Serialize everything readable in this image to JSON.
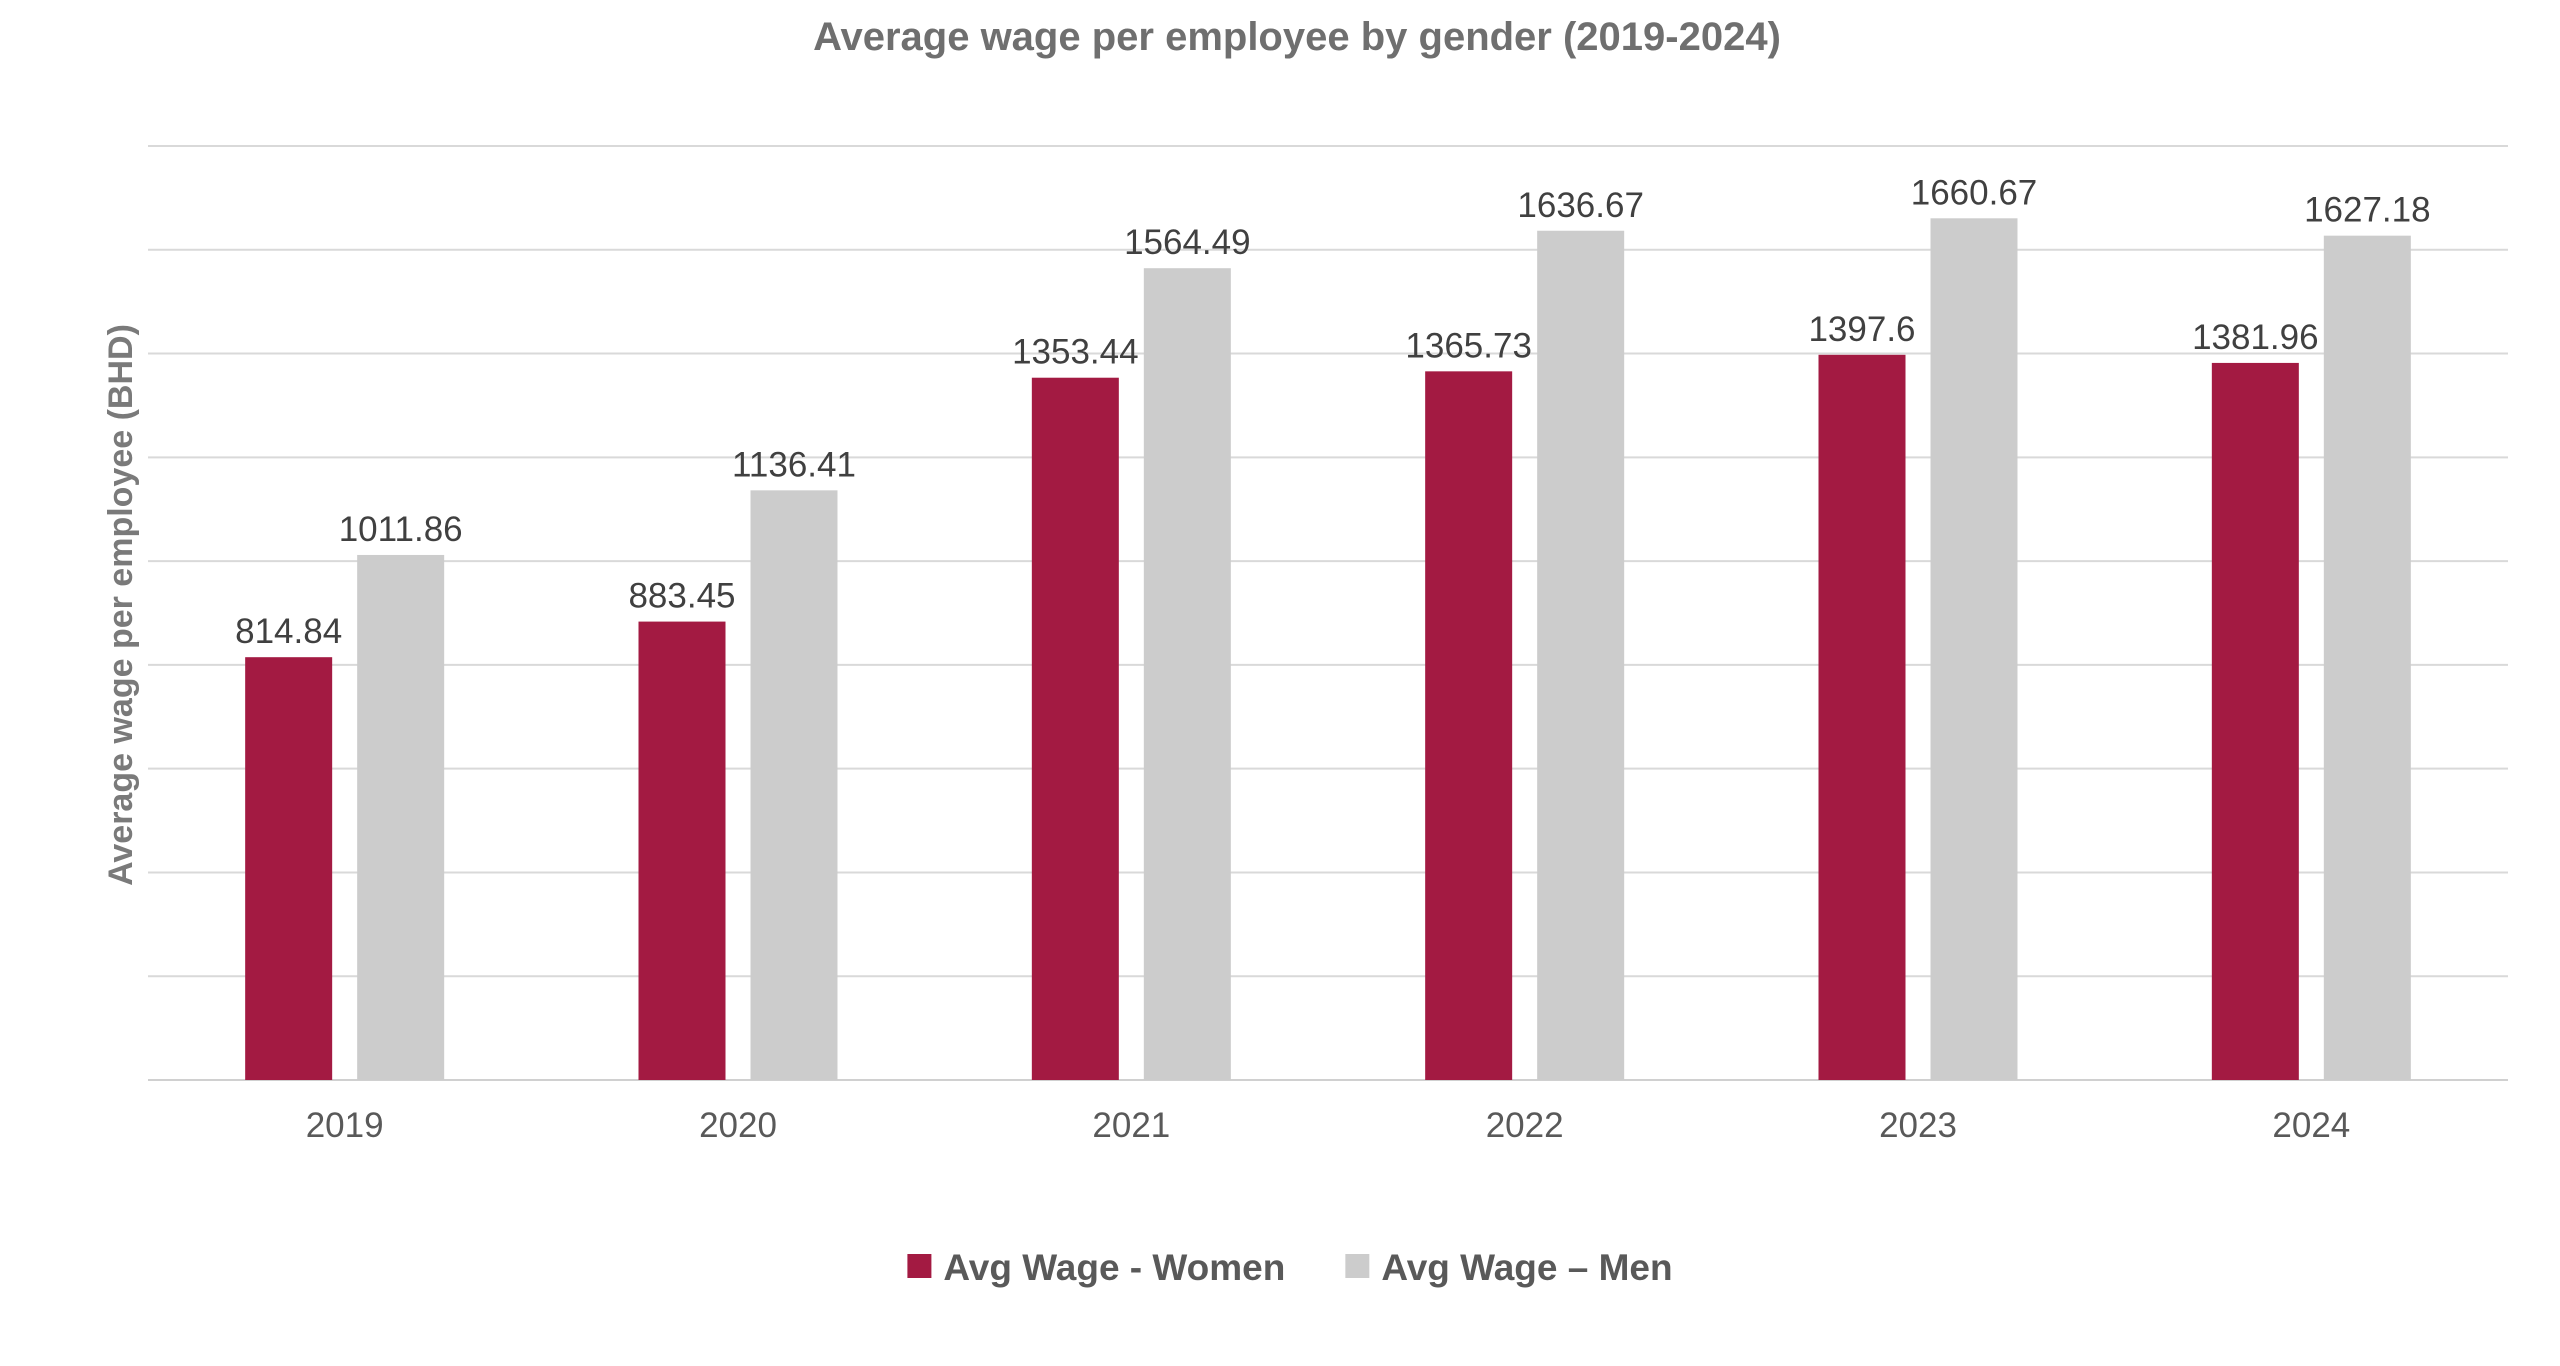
{
  "chart_data": {
    "type": "bar",
    "title": "Average wage per employee by gender (2019-2024)",
    "xlabel": "",
    "ylabel": "Average wage per employee (BHD)",
    "categories": [
      "2019",
      "2020",
      "2021",
      "2022",
      "2023",
      "2024"
    ],
    "series": [
      {
        "name": "Avg Wage - Women",
        "color": "#a31a42",
        "values": [
          814.84,
          883.45,
          1353.44,
          1365.73,
          1397.6,
          1381.96
        ],
        "labels": [
          "814.84",
          "883.45",
          "1353.44",
          "1365.73",
          "1397.6",
          "1381.96"
        ]
      },
      {
        "name": "Avg Wage – Men",
        "color": "#cccccc",
        "values": [
          1011.86,
          1136.41,
          1564.49,
          1636.67,
          1660.67,
          1627.18
        ],
        "labels": [
          "1011.86",
          "1136.41",
          "1564.49",
          "1636.67",
          "1660.67",
          "1627.18"
        ]
      }
    ],
    "ylim": [
      0,
      1800
    ],
    "ytick_step": 200,
    "grid": true,
    "legend_position": "bottom-center",
    "show_y_tick_labels": false
  }
}
